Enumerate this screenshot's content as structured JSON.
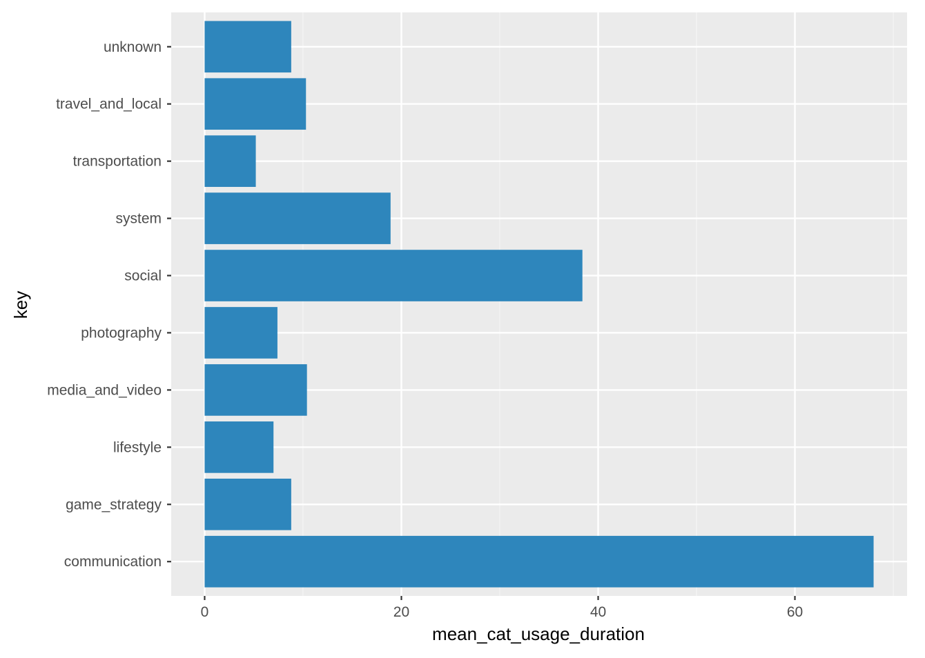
{
  "chart_data": {
    "type": "bar",
    "orientation": "horizontal",
    "categories": [
      "communication",
      "game_strategy",
      "lifestyle",
      "media_and_video",
      "photography",
      "social",
      "system",
      "transportation",
      "travel_and_local",
      "unknown"
    ],
    "values": [
      68.0,
      8.8,
      7.0,
      10.4,
      7.4,
      38.4,
      18.9,
      5.2,
      10.3,
      8.8
    ],
    "xlabel": "mean_cat_usage_duration",
    "ylabel": "key",
    "xlim": [
      -3.4,
      71.4
    ],
    "xticks": [
      0,
      20,
      40,
      60
    ],
    "xtick_labels": [
      "0",
      "20",
      "40",
      "60"
    ],
    "grid": true,
    "colors": {
      "bar": "#2e86bc",
      "panel": "#ebebeb",
      "grid_major": "#ffffff",
      "grid_minor": "#f5f5f5",
      "tick_text": "#4d4d4d",
      "tick_mark": "#333333"
    }
  }
}
